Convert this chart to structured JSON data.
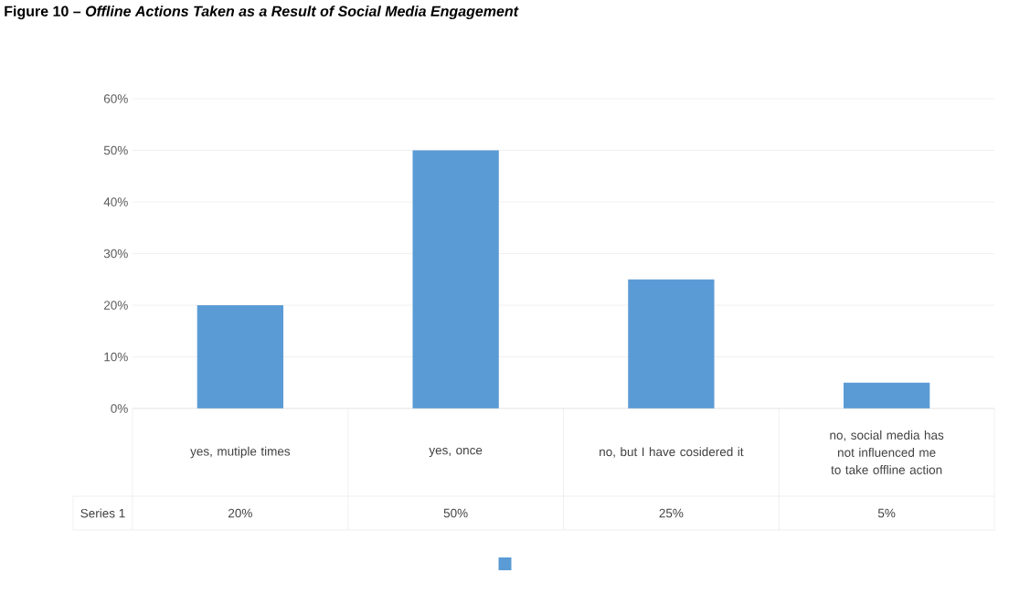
{
  "chart_data": {
    "type": "bar",
    "title": "Figure 10 – *Offline Actions Taken as a Result of Social Media Engagement*",
    "categories": [
      "yes, mutiple times",
      "yes, once",
      "no, but I have cosidered it",
      "no, social media has not influenced me to take offline action"
    ],
    "series": [
      {
        "name": "Series 1",
        "color": "#5b9bd5",
        "values": [
          20,
          50,
          25,
          5
        ],
        "value_labels": [
          "20%",
          "50%",
          "25%",
          "5%"
        ]
      }
    ],
    "ylim": [
      0,
      60
    ],
    "yticks": [
      {
        "value": 0,
        "label": "0%"
      },
      {
        "value": 10,
        "label": "10%"
      },
      {
        "value": 20,
        "label": "20%"
      },
      {
        "value": 30,
        "label": "30%"
      },
      {
        "value": 40,
        "label": "40%"
      },
      {
        "value": 50,
        "label": "50%"
      },
      {
        "value": 60,
        "label": "60%"
      }
    ],
    "grid": "y",
    "legend": "bottom"
  }
}
